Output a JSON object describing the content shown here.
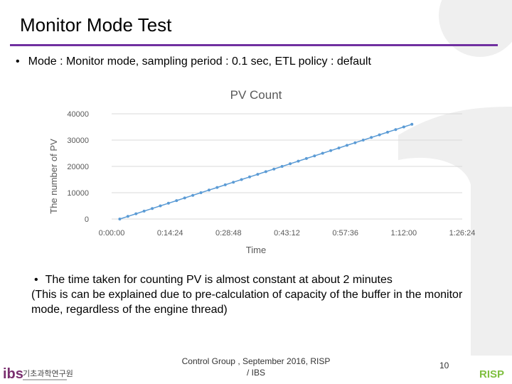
{
  "slide": {
    "title": "Monitor Mode Test",
    "bullet": "•",
    "mode_line": "Mode : Monitor mode, sampling period : 0.1 sec,  ETL policy : default",
    "note_bullet": "•",
    "note_line1": "The time taken for counting PV is almost constant at about 2 minutes",
    "note_line2": "(This is can be explained due to pre-calculation of capacity of the buffer in the monitor mode, regardless of the engine thread)",
    "footer_line1": "Control Group , September 2016, RISP",
    "footer_line2": "/ IBS",
    "page_number": "10",
    "accent_color": "#7030a0",
    "logo_left_text": "기초과학연구원",
    "logo_left_mark": "ibs",
    "logo_right_mark": "RISP"
  },
  "chart_data": {
    "type": "line",
    "title": "PV Count",
    "xlabel": "Time",
    "ylabel": "The number of PV",
    "x_ticks": [
      "0:00:00",
      "0:14:24",
      "0:28:48",
      "0:43:12",
      "0:57:36",
      "1:12:00",
      "1:26:24"
    ],
    "y_ticks": [
      "0",
      "10000",
      "20000",
      "30000",
      "40000"
    ],
    "xlim_minutes": [
      0,
      86.4
    ],
    "ylim": [
      0,
      40000
    ],
    "grid": "horizontal",
    "legend": "none",
    "series": [
      {
        "color": "#5b9bd5",
        "x_minutes": [
          2,
          4,
          6,
          8,
          10,
          12,
          14,
          16,
          18,
          20,
          22,
          24,
          26,
          28,
          30,
          32,
          34,
          36,
          38,
          40,
          42,
          44,
          46,
          48,
          50,
          52,
          54,
          56,
          58,
          60,
          62,
          64,
          66,
          68,
          70,
          72,
          74
        ],
        "values": [
          0,
          1000,
          2000,
          3000,
          4000,
          5000,
          6000,
          7000,
          8000,
          9000,
          10000,
          11000,
          12000,
          13000,
          14000,
          15000,
          16000,
          17000,
          18000,
          19000,
          20000,
          21000,
          22000,
          23000,
          24000,
          25000,
          26000,
          27000,
          28000,
          29000,
          30000,
          31000,
          32000,
          33000,
          34000,
          35000,
          36000
        ]
      }
    ]
  }
}
